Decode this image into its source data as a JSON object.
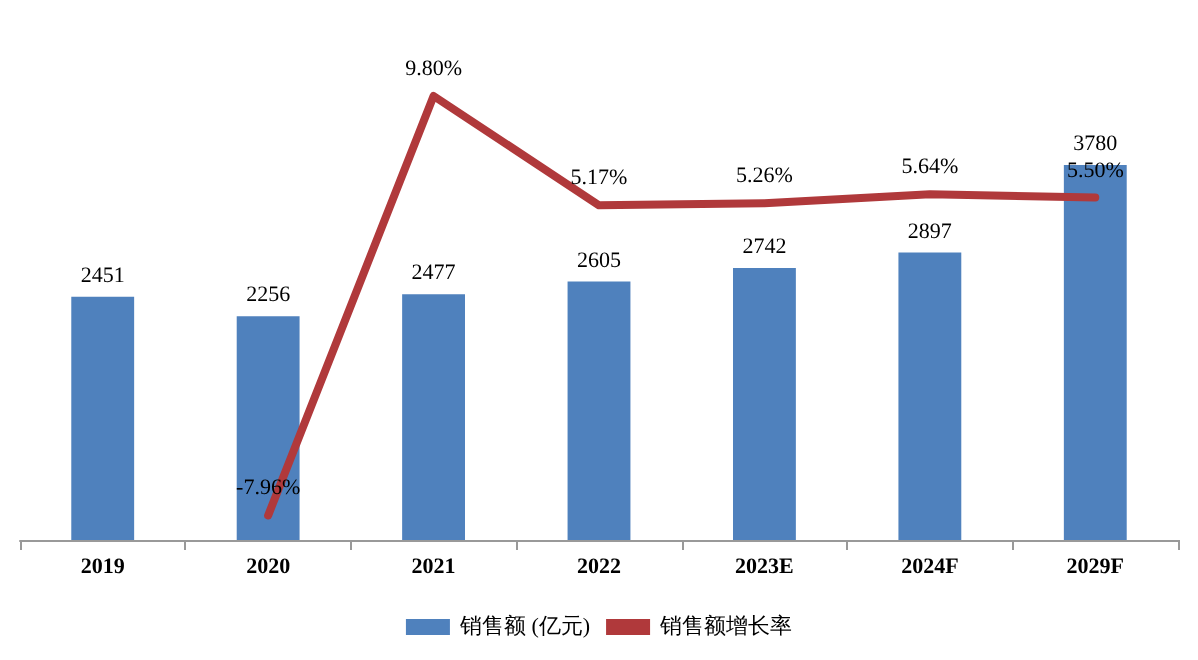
{
  "chart_data": {
    "type": "bar",
    "categories": [
      "2019",
      "2020",
      "2021",
      "2022",
      "2023E",
      "2024F",
      "2029F"
    ],
    "series": [
      {
        "name": "销售额 (亿元)",
        "color": "#4f81bd",
        "values": [
          2451,
          2256,
          2477,
          2605,
          2742,
          2897,
          3780
        ],
        "value_labels": [
          "2451",
          "2256",
          "2477",
          "2605",
          "2742",
          "2897",
          "3780"
        ]
      },
      {
        "name": "销售额增长率",
        "type": "line",
        "axis": "y2",
        "color": "#b0393b",
        "values": [
          null,
          -7.96,
          9.8,
          5.17,
          5.26,
          5.64,
          5.5
        ],
        "value_labels": [
          null,
          "-7.96%",
          "9.80%",
          "5.17%",
          "5.26%",
          "5.64%",
          "5.50%"
        ]
      }
    ],
    "legend": "bottom",
    "grid": false,
    "marker": "none"
  }
}
